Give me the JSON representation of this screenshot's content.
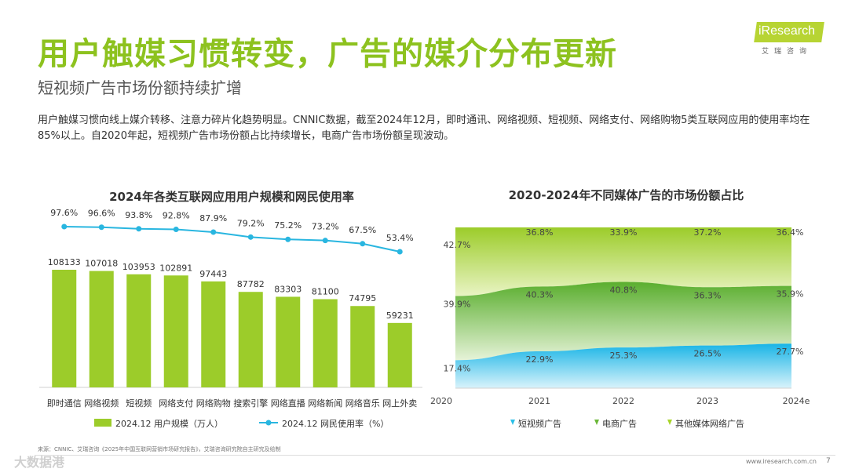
{
  "header": {
    "title": "用户触媒习惯转变，广告的媒介分布更新",
    "subtitle": "短视频广告市场份额持续扩增",
    "description": "用户触媒习惯向线上媒介转移、注意力碎片化趋势明显。CNNIC数据，截至2024年12月，即时通讯、网络视频、短视频、网络支付、网络购物5类互联网应用的使用率均在85%以上。自2020年起，短视频广告市场份额占比持续增长，电商广告市场份额呈现波动。"
  },
  "logo": {
    "text": "iResearch",
    "subtext": "艾瑞咨询"
  },
  "colors": {
    "brand_green": "#8dc21f",
    "bar_green": "#9ccc2a",
    "line_blue": "#29b6e0",
    "short_video": "#2cc0e8",
    "ecommerce": "#6ab737",
    "other_media": "#a8d42a"
  },
  "chart_data": [
    {
      "type": "bar",
      "title": "2024年各类互联网应用用户规模和网民使用率",
      "categories": [
        "即时通信",
        "网络视频",
        "短视频",
        "网络支付",
        "网络购物",
        "搜索引擎",
        "网络直播",
        "网络新闻",
        "网络音乐",
        "网上外卖"
      ],
      "series": [
        {
          "name": "2024.12 用户规模（万人）",
          "kind": "bar",
          "values": [
            108133,
            107018,
            103953,
            102891,
            97443,
            87782,
            83303,
            81100,
            74795,
            59231
          ],
          "labels": [
            "108133",
            "107018",
            "103953",
            "102891",
            "97443",
            "87782",
            "83303",
            "81100",
            "74795",
            "59231"
          ]
        },
        {
          "name": "2024.12 网民使用率（%）",
          "kind": "line",
          "values": [
            97.6,
            96.6,
            93.8,
            92.8,
            87.9,
            79.2,
            75.2,
            73.2,
            67.5,
            53.4
          ],
          "labels": [
            "97.6%",
            "96.6%",
            "93.8%",
            "92.8%",
            "87.9%",
            "79.2%",
            "75.2%",
            "73.2%",
            "67.5%",
            "53.4%"
          ]
        }
      ],
      "ylim": [
        0,
        140000
      ],
      "legend": "bottom"
    },
    {
      "type": "area",
      "stacked": true,
      "percent": true,
      "title": "2020-2024年不同媒体广告的市场份额占比",
      "categories": [
        "2020",
        "2021",
        "2022",
        "2023",
        "2024e"
      ],
      "series": [
        {
          "name": "短视频广告",
          "values": [
            17.4,
            22.9,
            25.3,
            26.5,
            27.7
          ],
          "labels": [
            "17.4%",
            "22.9%",
            "25.3%",
            "26.5%",
            "27.7%"
          ]
        },
        {
          "name": "电商广告",
          "values": [
            39.9,
            40.3,
            40.8,
            36.3,
            35.9
          ],
          "labels": [
            "39.9%",
            "40.3%",
            "40.8%",
            "36.3%",
            "35.9%"
          ]
        },
        {
          "name": "其他媒体网络广告",
          "values": [
            42.7,
            36.8,
            33.9,
            37.2,
            36.4
          ],
          "labels": [
            "42.7%",
            "36.8%",
            "33.9%",
            "37.2%",
            "36.4%"
          ]
        }
      ],
      "ylim": [
        0,
        100
      ],
      "legend": "bottom"
    }
  ],
  "footer": {
    "source": "来源：CNNIC、艾瑞咨询《2025年中国互联网营销市场研究报告》，艾瑞咨询研究院自主研究及绘制",
    "url": "www.iresearch.com.cn",
    "page": "7",
    "watermark": "大数据港"
  }
}
